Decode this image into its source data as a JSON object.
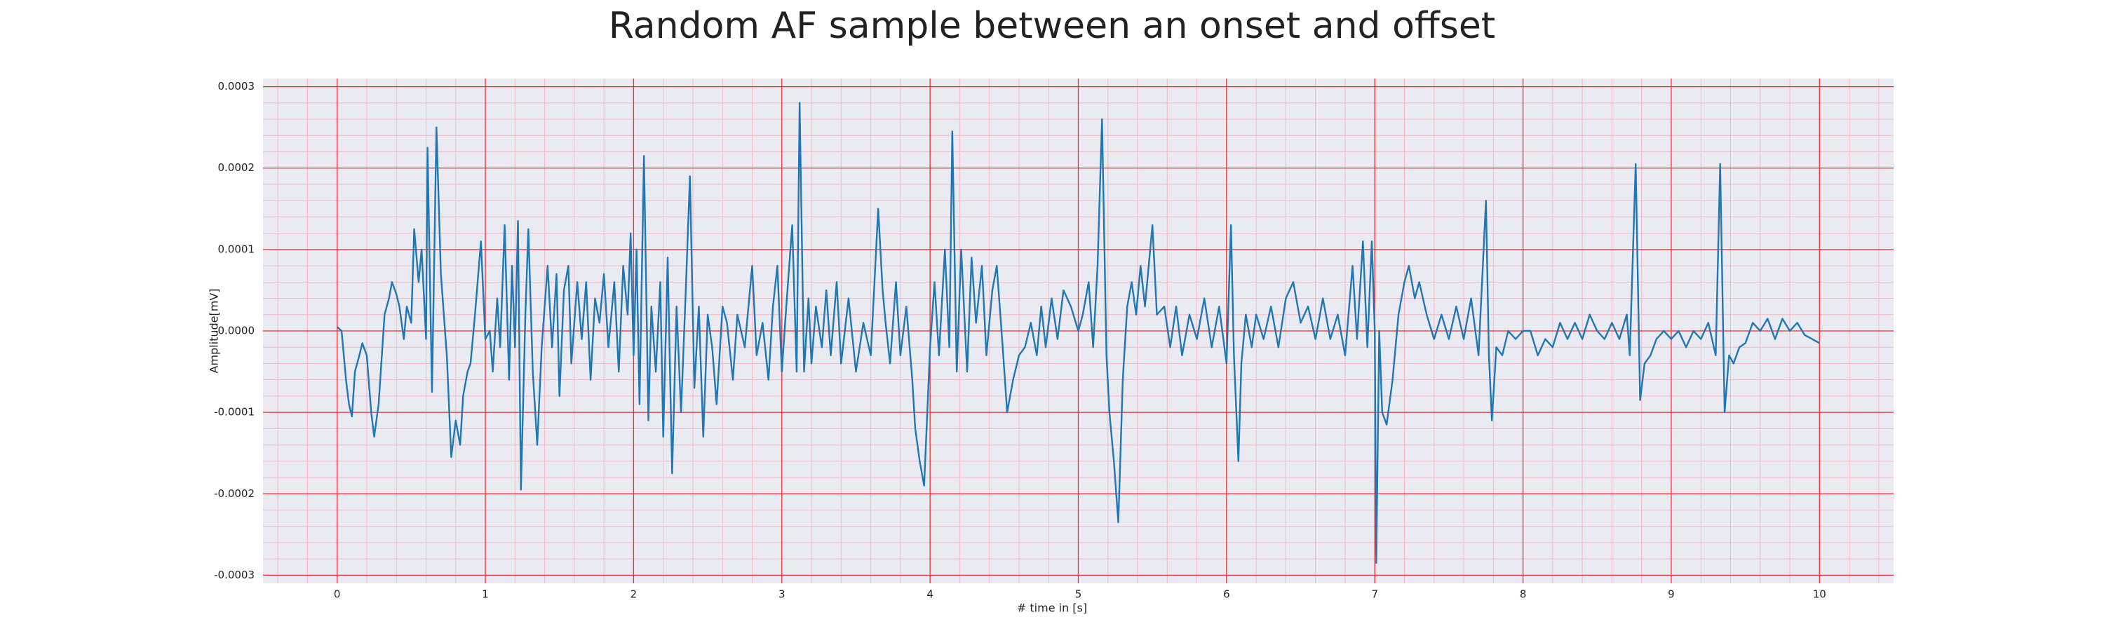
{
  "chart_data": {
    "type": "line",
    "title": "Random AF sample between an onset and offset",
    "xlabel": "# time in [s]",
    "ylabel": "Amplitude[mV]",
    "color": "#1f77b4",
    "grid": true,
    "xlim": [
      -0.5,
      10.5
    ],
    "ylim": [
      -0.00031,
      0.00031
    ],
    "xticks": [
      0,
      1,
      2,
      3,
      4,
      5,
      6,
      7,
      8,
      9,
      10
    ],
    "yticks": [
      0.0003,
      0.0002,
      0.0001,
      {
        "value": 0,
        "label": "0.0000"
      },
      -0.0001,
      -0.0002,
      -0.0003
    ],
    "minor_xticks": [
      -0.4,
      -0.2,
      0,
      0.2,
      0.4,
      0.6,
      0.8,
      1,
      1.2,
      1.4,
      1.6,
      1.8,
      2,
      2.2,
      2.4,
      2.6,
      2.8,
      3,
      3.2,
      3.4,
      3.6,
      3.8,
      4,
      4.2,
      4.4,
      4.6,
      4.8,
      5,
      5.2,
      5.4,
      5.6,
      5.8,
      6,
      6.2,
      6.4,
      6.6,
      6.8,
      7,
      7.2,
      7.4,
      7.6,
      7.8,
      8,
      8.2,
      8.4,
      8.6,
      8.8,
      9,
      9.2,
      9.4,
      9.6,
      9.8,
      10,
      10.2,
      10.4
    ],
    "minor_yticks": [
      -0.0003,
      -0.00028,
      -0.00026,
      -0.00024,
      -0.00022,
      -0.0002,
      -0.00018,
      -0.00016,
      -0.00014,
      -0.00012,
      -0.0001,
      -8e-05,
      -6e-05,
      -4e-05,
      -2e-05,
      0,
      2e-05,
      4e-05,
      6e-05,
      8e-05,
      0.0001,
      0.00012,
      0.00014,
      0.00016,
      0.00018,
      0.0002,
      0.00022,
      0.00024,
      0.00026,
      0.00028,
      0.0003
    ],
    "x": [
      0,
      0.03,
      0.06,
      0.08,
      0.1,
      0.12,
      0.15,
      0.17,
      0.2,
      0.23,
      0.25,
      0.28,
      0.32,
      0.35,
      0.37,
      0.4,
      0.42,
      0.45,
      0.47,
      0.5,
      0.52,
      0.55,
      0.57,
      0.6,
      0.61,
      0.64,
      0.67,
      0.7,
      0.72,
      0.74,
      0.77,
      0.8,
      0.83,
      0.85,
      0.88,
      0.9,
      0.93,
      0.97,
      1.0,
      1.03,
      1.05,
      1.08,
      1.1,
      1.13,
      1.16,
      1.18,
      1.2,
      1.22,
      1.24,
      1.27,
      1.29,
      1.32,
      1.35,
      1.38,
      1.42,
      1.45,
      1.48,
      1.5,
      1.53,
      1.56,
      1.58,
      1.62,
      1.65,
      1.68,
      1.71,
      1.74,
      1.77,
      1.8,
      1.83,
      1.87,
      1.9,
      1.93,
      1.96,
      1.98,
      2.0,
      2.02,
      2.04,
      2.07,
      2.1,
      2.12,
      2.15,
      2.18,
      2.2,
      2.23,
      2.26,
      2.29,
      2.32,
      2.35,
      2.38,
      2.41,
      2.44,
      2.47,
      2.5,
      2.53,
      2.56,
      2.6,
      2.63,
      2.67,
      2.7,
      2.75,
      2.8,
      2.83,
      2.87,
      2.91,
      2.94,
      2.97,
      3.0,
      3.03,
      3.07,
      3.1,
      3.12,
      3.15,
      3.18,
      3.2,
      3.23,
      3.27,
      3.3,
      3.33,
      3.37,
      3.4,
      3.45,
      3.5,
      3.55,
      3.6,
      3.65,
      3.68,
      3.7,
      3.73,
      3.77,
      3.8,
      3.84,
      3.88,
      3.9,
      3.93,
      3.96,
      4.0,
      4.03,
      4.06,
      4.1,
      4.13,
      4.15,
      4.18,
      4.21,
      4.25,
      4.28,
      4.31,
      4.35,
      4.38,
      4.42,
      4.45,
      4.49,
      4.52,
      4.56,
      4.6,
      4.64,
      4.68,
      4.72,
      4.75,
      4.78,
      4.82,
      4.86,
      4.9,
      4.95,
      5.0,
      5.03,
      5.07,
      5.1,
      5.13,
      5.16,
      5.19,
      5.21,
      5.24,
      5.27,
      5.3,
      5.33,
      5.36,
      5.39,
      5.42,
      5.45,
      5.5,
      5.53,
      5.58,
      5.62,
      5.66,
      5.7,
      5.75,
      5.8,
      5.85,
      5.9,
      5.95,
      6.0,
      6.03,
      6.05,
      6.08,
      6.1,
      6.13,
      6.17,
      6.2,
      6.25,
      6.3,
      6.35,
      6.4,
      6.45,
      6.5,
      6.55,
      6.6,
      6.65,
      6.7,
      6.75,
      6.8,
      6.85,
      6.88,
      6.92,
      6.95,
      6.98,
      7.0,
      7.01,
      7.03,
      7.05,
      7.08,
      7.12,
      7.16,
      7.2,
      7.23,
      7.27,
      7.3,
      7.35,
      7.4,
      7.45,
      7.5,
      7.55,
      7.6,
      7.65,
      7.7,
      7.75,
      7.77,
      7.79,
      7.82,
      7.86,
      7.9,
      7.95,
      8.0,
      8.05,
      8.1,
      8.15,
      8.2,
      8.25,
      8.3,
      8.35,
      8.4,
      8.45,
      8.5,
      8.55,
      8.6,
      8.65,
      8.7,
      8.72,
      8.76,
      8.79,
      8.82,
      8.86,
      8.9,
      8.95,
      9.0,
      9.05,
      9.1,
      9.15,
      9.2,
      9.25,
      9.3,
      9.33,
      9.36,
      9.39,
      9.42,
      9.46,
      9.5,
      9.55,
      9.6,
      9.65,
      9.7,
      9.75,
      9.8,
      9.85,
      9.9,
      9.95,
      10.0
    ],
    "values": [
      5e-06,
      0,
      -6e-05,
      -9e-05,
      -0.000105,
      -5e-05,
      -3e-05,
      -1.5e-05,
      -3e-05,
      -0.0001,
      -0.00013,
      -9e-05,
      2e-05,
      4e-05,
      6e-05,
      4.5e-05,
      3e-05,
      -1e-05,
      3e-05,
      1e-05,
      0.000125,
      6e-05,
      0.0001,
      -1e-05,
      0.000225,
      -7.5e-05,
      0.00025,
      7e-05,
      2e-05,
      -3e-05,
      -0.000155,
      -0.00011,
      -0.00014,
      -8e-05,
      -5e-05,
      -4e-05,
      2e-05,
      0.00011,
      -1e-05,
      0,
      -5e-05,
      4e-05,
      -2e-05,
      0.00013,
      -6e-05,
      8e-05,
      -2e-05,
      0.000135,
      -0.000195,
      2e-05,
      0.000125,
      -5e-05,
      -0.00014,
      -2e-05,
      8e-05,
      -2e-05,
      7e-05,
      -8e-05,
      5e-05,
      8e-05,
      -4e-05,
      6e-05,
      -1e-05,
      6e-05,
      -6e-05,
      4e-05,
      1e-05,
      7e-05,
      -2e-05,
      6e-05,
      -5e-05,
      8e-05,
      2e-05,
      0.00012,
      -3e-05,
      0.0001,
      -9e-05,
      0.000215,
      -0.00011,
      3e-05,
      -5e-05,
      6e-05,
      -0.00013,
      9e-05,
      -0.000175,
      3e-05,
      -0.0001,
      4e-05,
      0.00019,
      -7e-05,
      3e-05,
      -0.00013,
      2e-05,
      -2e-05,
      -9e-05,
      3e-05,
      1e-05,
      -6e-05,
      2e-05,
      -2e-05,
      8e-05,
      -3e-05,
      1e-05,
      -6e-05,
      3e-05,
      8e-05,
      -5e-05,
      3e-05,
      0.00013,
      -5e-05,
      0.00028,
      -5e-05,
      4e-05,
      -4e-05,
      3e-05,
      -2e-05,
      5e-05,
      -3e-05,
      6e-05,
      -4e-05,
      4e-05,
      -5e-05,
      1e-05,
      -3e-05,
      0.00015,
      5e-05,
      1e-05,
      -4e-05,
      6e-05,
      -3e-05,
      3e-05,
      -6e-05,
      -0.00012,
      -0.00016,
      -0.00019,
      -2e-05,
      6e-05,
      -3e-05,
      0.0001,
      -2e-05,
      0.000245,
      -5e-05,
      0.0001,
      -5e-05,
      9e-05,
      1e-05,
      8e-05,
      -3e-05,
      5e-05,
      8e-05,
      -2e-05,
      -0.0001,
      -6e-05,
      -3e-05,
      -2e-05,
      1e-05,
      -3e-05,
      3e-05,
      -2e-05,
      4e-05,
      -1e-05,
      5e-05,
      3e-05,
      0,
      2e-05,
      6e-05,
      -2e-05,
      8e-05,
      0.00026,
      -3e-05,
      -0.0001,
      -0.00016,
      -0.000235,
      -6e-05,
      3e-05,
      6e-05,
      2e-05,
      8e-05,
      3e-05,
      0.00013,
      2e-05,
      3e-05,
      -2e-05,
      3e-05,
      -3e-05,
      2e-05,
      -1e-05,
      4e-05,
      -2e-05,
      3e-05,
      -4e-05,
      0.00013,
      -3e-05,
      -0.00016,
      -4e-05,
      2e-05,
      -2e-05,
      2e-05,
      -1e-05,
      3e-05,
      -2e-05,
      4e-05,
      6e-05,
      1e-05,
      3e-05,
      -1e-05,
      4e-05,
      -1e-05,
      2e-05,
      -3e-05,
      8e-05,
      -1e-05,
      0.00011,
      -2e-05,
      0.00011,
      0,
      -0.000285,
      0,
      -0.0001,
      -0.000115,
      -6e-05,
      2e-05,
      6e-05,
      8e-05,
      4e-05,
      6e-05,
      2e-05,
      -1e-05,
      2e-05,
      -1e-05,
      3e-05,
      -1e-05,
      4e-05,
      -3e-05,
      0.00016,
      -3e-05,
      -0.00011,
      -2e-05,
      -3e-05,
      0,
      -1e-05,
      0,
      0,
      -3e-05,
      -1e-05,
      -2e-05,
      1e-05,
      -1e-05,
      1e-05,
      -1e-05,
      2e-05,
      0,
      -1e-05,
      1e-05,
      -1e-05,
      2e-05,
      -3e-05,
      0.000205,
      -8.5e-05,
      -4e-05,
      -3e-05,
      -1e-05,
      0,
      -1e-05,
      0,
      -2e-05,
      0,
      -1e-05,
      1e-05,
      -3e-05,
      0.000205,
      -0.0001,
      -3e-05,
      -4e-05,
      -2e-05,
      -1.5e-05,
      1e-05,
      0,
      1.5e-05,
      -1e-05,
      1.5e-05,
      0,
      1e-05,
      -5e-06,
      -1e-05,
      -1.5e-05
    ]
  }
}
